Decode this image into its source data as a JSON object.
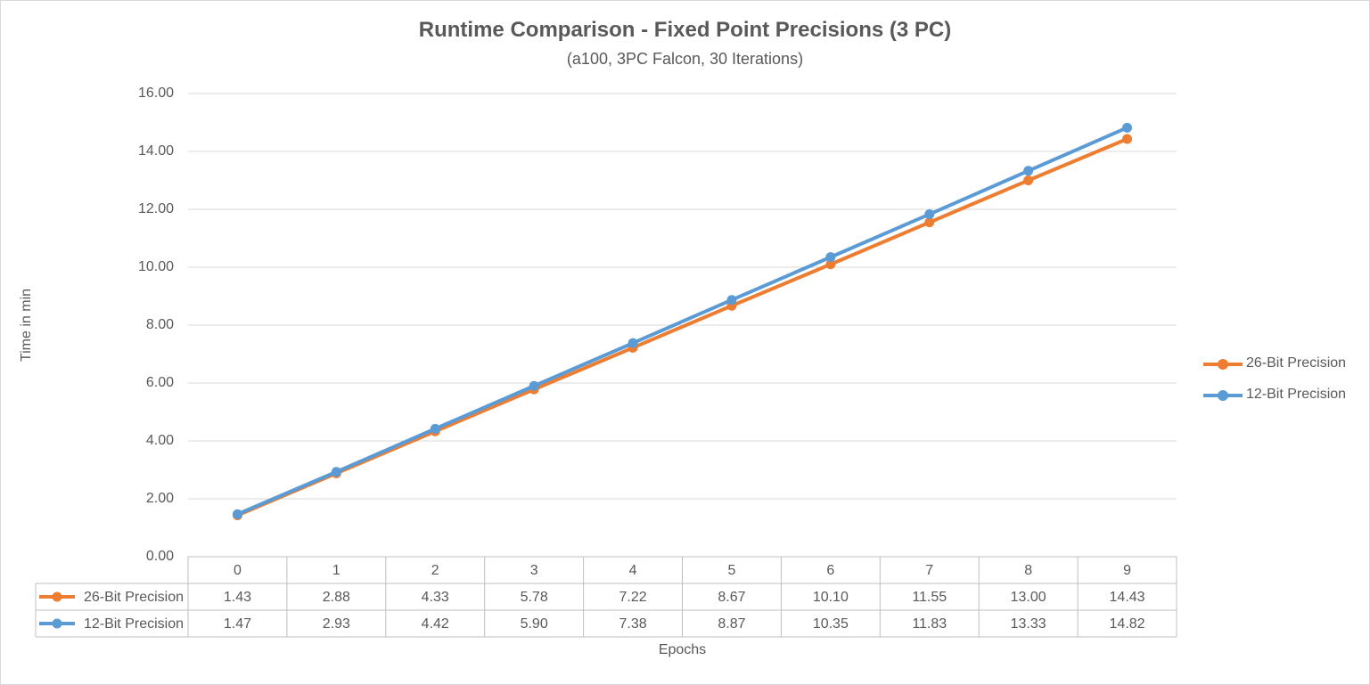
{
  "chart_data": {
    "type": "line",
    "title": "Runtime Comparison - Fixed Point Precisions (3 PC)",
    "subtitle": "(a100, 3PC Falcon, 30 Iterations)",
    "xlabel": "Epochs",
    "ylabel": "Time in min",
    "categories": [
      "0",
      "1",
      "2",
      "3",
      "4",
      "5",
      "6",
      "7",
      "8",
      "9"
    ],
    "series": [
      {
        "name": "26-Bit Precision",
        "color": "#ed7d31",
        "values": [
          1.43,
          2.88,
          4.33,
          5.78,
          7.22,
          8.67,
          10.1,
          11.55,
          13.0,
          14.43
        ],
        "labels": [
          "1.43",
          "2.88",
          "4.33",
          "5.78",
          "7.22",
          "8.67",
          "10.10",
          "11.55",
          "13.00",
          "14.43"
        ]
      },
      {
        "name": "12-Bit Precision",
        "color": "#5b9bd5",
        "values": [
          1.47,
          2.93,
          4.42,
          5.9,
          7.38,
          8.87,
          10.35,
          11.83,
          13.33,
          14.82
        ],
        "labels": [
          "1.47",
          "2.93",
          "4.42",
          "5.90",
          "7.38",
          "8.87",
          "10.35",
          "11.83",
          "13.33",
          "14.82"
        ]
      }
    ],
    "ylim": [
      0,
      16
    ],
    "yticks": [
      "0.00",
      "2.00",
      "4.00",
      "6.00",
      "8.00",
      "10.00",
      "12.00",
      "14.00",
      "16.00"
    ],
    "grid": true,
    "legend": "right",
    "data_table": true
  }
}
